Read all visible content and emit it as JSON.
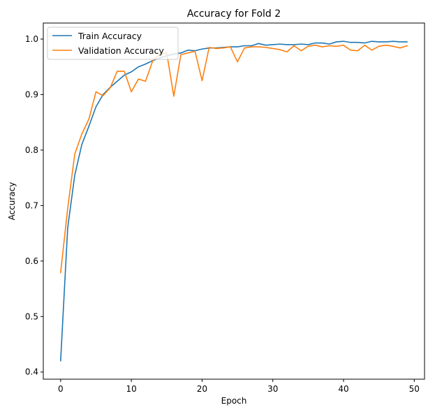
{
  "chart_data": {
    "type": "line",
    "title": "Accuracy for Fold 2",
    "xlabel": "Epoch",
    "ylabel": "Accuracy",
    "xlim": [
      -2.45,
      51.45
    ],
    "ylim": [
      0.3871,
      1.0289
    ],
    "xticks": [
      0,
      10,
      20,
      30,
      40,
      50
    ],
    "yticks": [
      0.4,
      0.5,
      0.6,
      0.7,
      0.8,
      0.9,
      1.0
    ],
    "xtick_labels": [
      "0",
      "10",
      "20",
      "30",
      "40",
      "50"
    ],
    "ytick_labels": [
      "0.4",
      "0.5",
      "0.6",
      "0.7",
      "0.8",
      "0.9",
      "1.0"
    ],
    "grid": false,
    "legend_position": "top-left",
    "x": [
      0,
      1,
      2,
      3,
      4,
      5,
      6,
      7,
      8,
      9,
      10,
      11,
      12,
      13,
      14,
      15,
      16,
      17,
      18,
      19,
      20,
      21,
      22,
      23,
      24,
      25,
      26,
      27,
      28,
      29,
      30,
      31,
      32,
      33,
      34,
      35,
      36,
      37,
      38,
      39,
      40,
      41,
      42,
      43,
      44,
      45,
      46,
      47,
      48,
      49
    ],
    "series": [
      {
        "name": "Train Accuracy",
        "color": "#1f77b4",
        "values": [
          0.42,
          0.66,
          0.755,
          0.81,
          0.843,
          0.878,
          0.9,
          0.913,
          0.924,
          0.935,
          0.941,
          0.95,
          0.955,
          0.961,
          0.966,
          0.97,
          0.973,
          0.975,
          0.98,
          0.979,
          0.982,
          0.984,
          0.984,
          0.985,
          0.986,
          0.986,
          0.988,
          0.988,
          0.992,
          0.989,
          0.99,
          0.991,
          0.99,
          0.99,
          0.991,
          0.99,
          0.993,
          0.993,
          0.991,
          0.995,
          0.996,
          0.994,
          0.994,
          0.993,
          0.996,
          0.995,
          0.995,
          0.996,
          0.995,
          0.995
        ]
      },
      {
        "name": "Validation Accuracy",
        "color": "#ff7f0e",
        "values": [
          0.579,
          0.695,
          0.793,
          0.829,
          0.856,
          0.905,
          0.898,
          0.912,
          0.942,
          0.942,
          0.905,
          0.928,
          0.924,
          0.96,
          0.973,
          0.975,
          0.897,
          0.972,
          0.975,
          0.978,
          0.925,
          0.985,
          0.983,
          0.984,
          0.986,
          0.959,
          0.984,
          0.986,
          0.986,
          0.985,
          0.983,
          0.981,
          0.977,
          0.988,
          0.979,
          0.987,
          0.989,
          0.986,
          0.988,
          0.987,
          0.989,
          0.98,
          0.979,
          0.989,
          0.98,
          0.987,
          0.989,
          0.987,
          0.984,
          0.988
        ]
      }
    ]
  }
}
